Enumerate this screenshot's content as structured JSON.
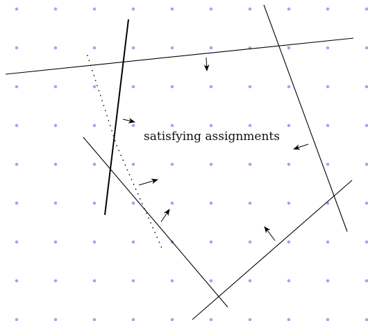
{
  "diagram": {
    "label": "satisfying assignments",
    "colors": {
      "lattice_dot": "#a3a6ee",
      "line": "#000000",
      "background": "#ffffff"
    }
  }
}
